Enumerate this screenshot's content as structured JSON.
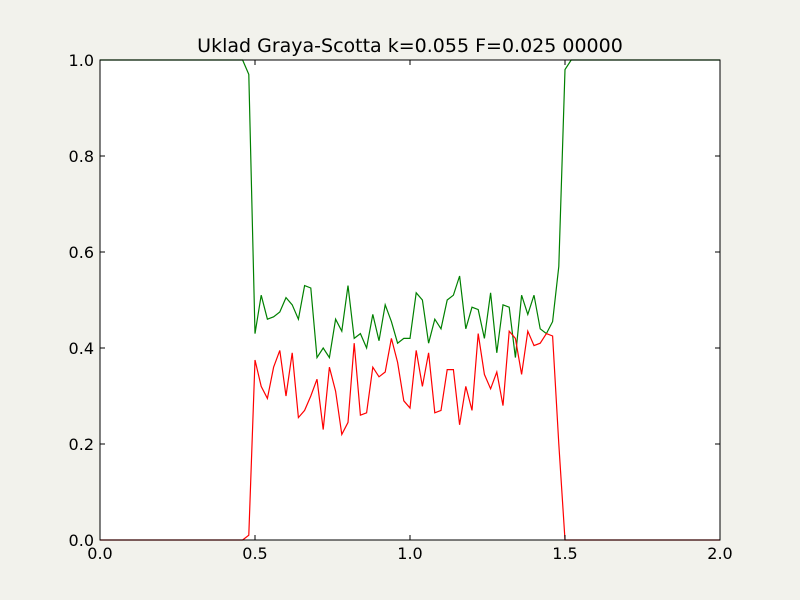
{
  "chart_data": {
    "type": "line",
    "title": "Uklad Graya-Scotta k=0.055 F=0.025 00000",
    "xlabel": "",
    "ylabel": "",
    "xlim": [
      0.0,
      2.0
    ],
    "ylim": [
      0.0,
      1.0
    ],
    "xticks": [
      "0.0",
      "0.5",
      "1.0",
      "1.5",
      "2.0"
    ],
    "xtick_values": [
      0.0,
      0.5,
      1.0,
      1.5,
      2.0
    ],
    "yticks": [
      "0.0",
      "0.2",
      "0.4",
      "0.6",
      "0.8",
      "1.0"
    ],
    "ytick_values": [
      0.0,
      0.2,
      0.4,
      0.6,
      0.8,
      1.0
    ],
    "grid": false,
    "legend": "none",
    "series": [
      {
        "color": "#008000",
        "x": [
          0.0,
          0.46,
          0.48,
          0.5,
          0.52,
          0.54,
          0.56,
          0.58,
          0.6,
          0.62,
          0.64,
          0.66,
          0.68,
          0.7,
          0.72,
          0.74,
          0.76,
          0.78,
          0.8,
          0.82,
          0.84,
          0.86,
          0.88,
          0.9,
          0.92,
          0.94,
          0.96,
          0.98,
          1.0,
          1.02,
          1.04,
          1.06,
          1.08,
          1.1,
          1.12,
          1.14,
          1.16,
          1.18,
          1.2,
          1.22,
          1.24,
          1.26,
          1.28,
          1.3,
          1.32,
          1.34,
          1.36,
          1.38,
          1.4,
          1.42,
          1.44,
          1.46,
          1.48,
          1.5,
          1.52,
          2.0
        ],
        "values": [
          1.0,
          1.0,
          0.97,
          0.43,
          0.51,
          0.46,
          0.465,
          0.475,
          0.505,
          0.49,
          0.46,
          0.53,
          0.525,
          0.38,
          0.4,
          0.38,
          0.46,
          0.435,
          0.53,
          0.42,
          0.43,
          0.4,
          0.47,
          0.415,
          0.49,
          0.455,
          0.41,
          0.42,
          0.42,
          0.515,
          0.5,
          0.41,
          0.46,
          0.44,
          0.5,
          0.51,
          0.55,
          0.44,
          0.485,
          0.48,
          0.42,
          0.515,
          0.39,
          0.49,
          0.485,
          0.38,
          0.51,
          0.47,
          0.51,
          0.44,
          0.43,
          0.455,
          0.57,
          0.98,
          1.0,
          1.0
        ]
      },
      {
        "color": "#ff0000",
        "x": [
          0.0,
          0.46,
          0.48,
          0.5,
          0.52,
          0.54,
          0.56,
          0.58,
          0.6,
          0.62,
          0.64,
          0.66,
          0.68,
          0.7,
          0.72,
          0.74,
          0.76,
          0.78,
          0.8,
          0.82,
          0.84,
          0.86,
          0.88,
          0.9,
          0.92,
          0.94,
          0.96,
          0.98,
          1.0,
          1.02,
          1.04,
          1.06,
          1.08,
          1.1,
          1.12,
          1.14,
          1.16,
          1.18,
          1.2,
          1.22,
          1.24,
          1.26,
          1.28,
          1.3,
          1.32,
          1.34,
          1.36,
          1.38,
          1.4,
          1.42,
          1.44,
          1.46,
          1.48,
          1.5,
          1.52,
          2.0
        ],
        "values": [
          0.0,
          0.0,
          0.01,
          0.375,
          0.32,
          0.295,
          0.36,
          0.395,
          0.3,
          0.39,
          0.255,
          0.27,
          0.3,
          0.335,
          0.23,
          0.36,
          0.31,
          0.22,
          0.245,
          0.41,
          0.26,
          0.265,
          0.36,
          0.34,
          0.35,
          0.42,
          0.37,
          0.29,
          0.275,
          0.395,
          0.32,
          0.39,
          0.265,
          0.27,
          0.355,
          0.355,
          0.24,
          0.32,
          0.27,
          0.43,
          0.345,
          0.315,
          0.35,
          0.28,
          0.435,
          0.42,
          0.345,
          0.435,
          0.405,
          0.41,
          0.43,
          0.425,
          0.2,
          0.0,
          0.0,
          0.0
        ]
      }
    ]
  }
}
